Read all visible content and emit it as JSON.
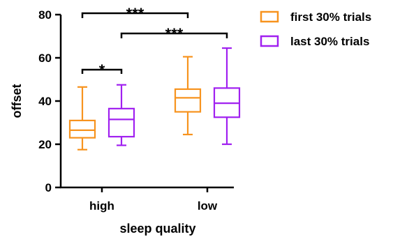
{
  "chart_data": {
    "type": "boxplot",
    "xlabel": "sleep quality",
    "ylabel": "offset",
    "ylim": [
      0,
      80
    ],
    "yticks": [
      "0",
      "20",
      "40",
      "60",
      "80"
    ],
    "categories": [
      "high",
      "low"
    ],
    "series": [
      {
        "name": "first 30% trials",
        "color": "#F7931E",
        "boxes": [
          {
            "category": "high",
            "min": 17.5,
            "q1": 23,
            "median": 26.5,
            "q3": 31,
            "max": 46.5
          },
          {
            "category": "low",
            "min": 24.5,
            "q1": 35,
            "median": 41.5,
            "q3": 45.5,
            "max": 60.5
          }
        ]
      },
      {
        "name": "last 30% trials",
        "color": "#A020F0",
        "boxes": [
          {
            "category": "high",
            "min": 19.5,
            "q1": 23.5,
            "median": 31.5,
            "q3": 36.5,
            "max": 47.5
          },
          {
            "category": "low",
            "min": 20,
            "q1": 32.5,
            "median": 39,
            "q3": 46,
            "max": 64.5
          }
        ]
      }
    ],
    "significance": [
      {
        "label": "***",
        "from": {
          "category": "high",
          "series": 0
        },
        "to": {
          "category": "low",
          "series": 0
        }
      },
      {
        "label": "***",
        "from": {
          "category": "high",
          "series": 1
        },
        "to": {
          "category": "low",
          "series": 1
        }
      },
      {
        "label": "*",
        "from": {
          "category": "high",
          "series": 0
        },
        "to": {
          "category": "high",
          "series": 1
        }
      }
    ],
    "legend_position": "top-right"
  }
}
